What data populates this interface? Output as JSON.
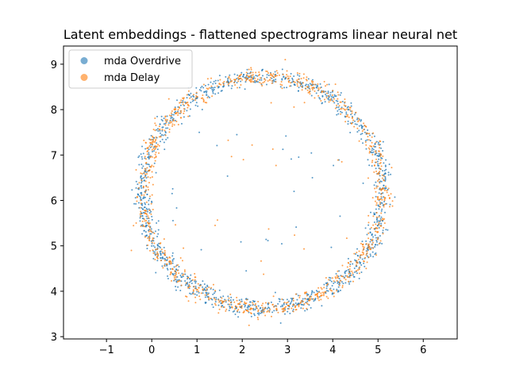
{
  "chart_data": {
    "type": "scatter",
    "title": "Latent embeddings - flattened spectrograms linear neural net",
    "xlabel": "",
    "ylabel": "",
    "xlim": [
      -1.95,
      6.75
    ],
    "ylim": [
      2.95,
      9.4
    ],
    "xticks": [
      -1,
      0,
      1,
      2,
      3,
      4,
      5,
      6
    ],
    "yticks": [
      3,
      4,
      5,
      6,
      7,
      8,
      9
    ],
    "grid": false,
    "legend_position": "top-left",
    "colors": {
      "overdrive": "#1f77b4",
      "delay": "#ff7f0e"
    },
    "ring": {
      "center": [
        2.45,
        6.17
      ],
      "radius_x": 2.65,
      "radius_y": 2.55,
      "spread": 0.1
    },
    "series": [
      {
        "name": "mda Overdrive",
        "color": "#1f77b4",
        "generated": {
          "count": 1200,
          "seed": 17,
          "outliers": 26
        },
        "points": [
          [
            -0.3,
            6.12
          ],
          [
            2.1,
            8.75
          ],
          [
            4.95,
            6.4
          ],
          [
            3.0,
            3.55
          ],
          [
            0.55,
            4.2
          ],
          [
            1.05,
            7.5
          ],
          [
            3.55,
            6.5
          ],
          [
            0.45,
            6.15
          ],
          [
            2.85,
            3.3
          ]
        ]
      },
      {
        "name": "mda Delay",
        "color": "#ff7f0e",
        "generated": {
          "count": 1000,
          "seed": 91,
          "outliers": 20
        },
        "points": [
          [
            2.95,
            9.1
          ],
          [
            -0.45,
            4.9
          ],
          [
            5.15,
            5.5
          ],
          [
            1.4,
            5.45
          ],
          [
            0.7,
            4.95
          ],
          [
            4.2,
            6.85
          ],
          [
            1.15,
            8.2
          ],
          [
            2.15,
            3.25
          ]
        ]
      }
    ]
  }
}
